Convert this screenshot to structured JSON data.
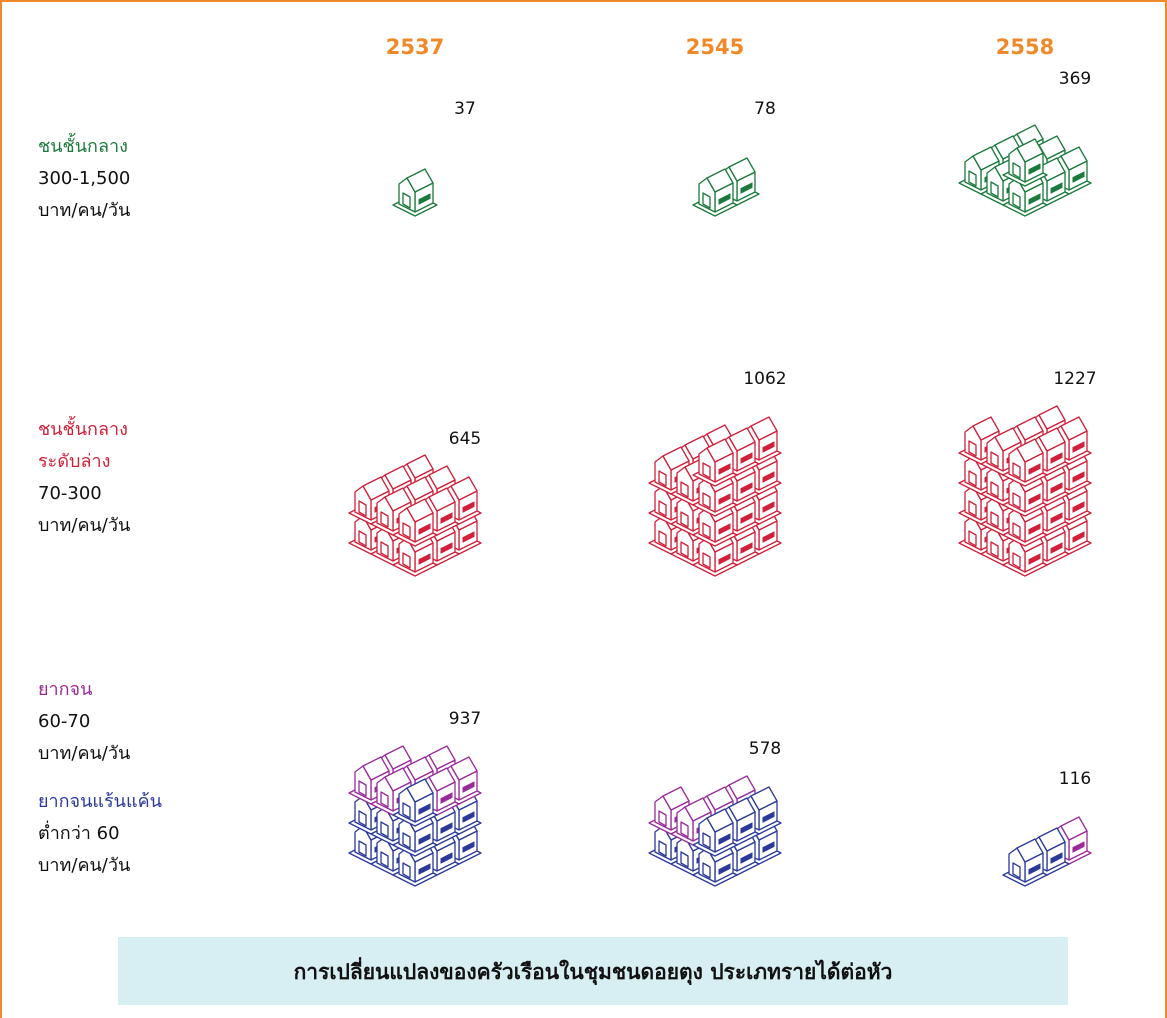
{
  "chart_data": {
    "type": "pictogram",
    "title": "การเปลี่ยนแปลงของครัวเรือนในชุมชนดอยตุง ประเภทรายได้ต่อหัว",
    "categories": [
      "2537",
      "2545",
      "2558"
    ],
    "series": [
      {
        "name": "ชนชั้นกลาง",
        "range": "300-1,500",
        "unit": "บาท/คน/วัน",
        "color": "#1b7a3c",
        "values": [
          37,
          78,
          369
        ]
      },
      {
        "name": "ชนชั้นกลาง",
        "name2": "ระดับล่าง",
        "range": "70-300",
        "unit": "บาท/คน/วัน",
        "color": "#d0203a",
        "values": [
          645,
          1062,
          1227
        ]
      },
      {
        "name": "ยากจน",
        "range": "60-70",
        "unit": "บาท/คน/วัน",
        "color": "#9a2a9a",
        "sub_name": "ยากจนแร้นแค้น",
        "sub_range": "ต่ำกว่า 60",
        "sub_unit": "บาท/คน/วัน",
        "sub_color": "#2b3a9a",
        "values": [
          937,
          578,
          116
        ]
      }
    ]
  }
}
